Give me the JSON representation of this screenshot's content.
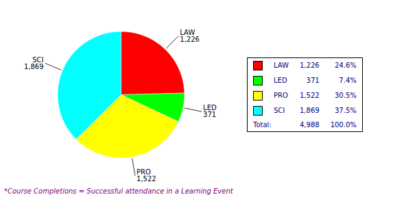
{
  "chart_data": {
    "type": "pie",
    "categories": [
      "LAW",
      "LED",
      "PRO",
      "SCI"
    ],
    "values": [
      1226,
      371,
      1522,
      1869
    ],
    "value_labels": [
      "1,226",
      "371",
      "1,522",
      "1,869"
    ],
    "colors": [
      "#FF0000",
      "#00FF00",
      "#FFFF00",
      "#00FFFF"
    ],
    "percentages": [
      24.6,
      7.4,
      30.5,
      37.5
    ],
    "percentage_labels": [
      "24.6%",
      "7.4%",
      "30.5%",
      "37.5%"
    ],
    "total_text": "Total:",
    "total": 4988,
    "total_label": "4,988",
    "total_percentage": 100.0,
    "total_percentage_label": "100.0%",
    "legend": "right",
    "legend_text_color": "#000080",
    "footnote": "*Course Completions = Successful attendance in a Learning Event",
    "footnote_color": "#800080"
  }
}
